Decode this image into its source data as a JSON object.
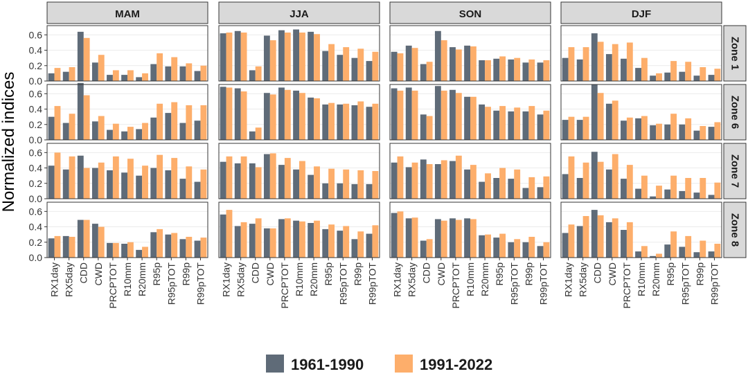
{
  "chart_data": {
    "type": "bar",
    "ylabel": "Normalized indices",
    "ylim": [
      0,
      0.72
    ],
    "yticks": [
      0.0,
      0.2,
      0.4,
      0.6
    ],
    "ytick_labels": [
      "0.0",
      "0.2",
      "0.4",
      "0.6"
    ],
    "seasons": [
      "MAM",
      "JJA",
      "SON",
      "DJF"
    ],
    "zones": [
      "Zone 1",
      "Zone 6",
      "Zone 7",
      "Zone 8"
    ],
    "categories": [
      "RX1day",
      "RX5day",
      "CDD",
      "CWD",
      "PRCPTOT",
      "R10mm",
      "R20mm",
      "R95p",
      "R95pTOT",
      "R99p",
      "R99pTOT"
    ],
    "series": [
      {
        "name": "1961-1990",
        "color": "#5f6b78"
      },
      {
        "name": "1991-2022",
        "color": "#fdae6b"
      }
    ],
    "legend": {
      "position": "bottom",
      "items": [
        "1961-1990",
        "1991-2022"
      ]
    },
    "panels": [
      {
        "zone": "Zone 1",
        "season": "MAM",
        "v1961": [
          0.1,
          0.12,
          0.64,
          0.24,
          0.08,
          0.08,
          0.05,
          0.22,
          0.19,
          0.19,
          0.13
        ],
        "v1991": [
          0.17,
          0.18,
          0.56,
          0.34,
          0.14,
          0.14,
          0.1,
          0.36,
          0.31,
          0.23,
          0.2
        ]
      },
      {
        "zone": "Zone 1",
        "season": "JJA",
        "v1961": [
          0.62,
          0.65,
          0.14,
          0.59,
          0.66,
          0.67,
          0.64,
          0.39,
          0.34,
          0.3,
          0.26
        ],
        "v1991": [
          0.63,
          0.63,
          0.19,
          0.53,
          0.63,
          0.63,
          0.61,
          0.48,
          0.44,
          0.42,
          0.38
        ]
      },
      {
        "zone": "Zone 1",
        "season": "SON",
        "v1961": [
          0.38,
          0.46,
          0.22,
          0.65,
          0.44,
          0.46,
          0.27,
          0.29,
          0.28,
          0.24,
          0.24
        ],
        "v1991": [
          0.36,
          0.43,
          0.25,
          0.53,
          0.41,
          0.45,
          0.27,
          0.32,
          0.3,
          0.28,
          0.27
        ]
      },
      {
        "zone": "Zone 1",
        "season": "DJF",
        "v1961": [
          0.3,
          0.28,
          0.62,
          0.35,
          0.29,
          0.17,
          0.07,
          0.11,
          0.12,
          0.07,
          0.08
        ],
        "v1991": [
          0.44,
          0.44,
          0.51,
          0.48,
          0.5,
          0.3,
          0.1,
          0.26,
          0.25,
          0.18,
          0.16
        ]
      },
      {
        "zone": "Zone 6",
        "season": "MAM",
        "v1961": [
          0.3,
          0.22,
          0.74,
          0.24,
          0.13,
          0.11,
          0.14,
          0.29,
          0.35,
          0.22,
          0.25
        ],
        "v1991": [
          0.44,
          0.34,
          0.58,
          0.31,
          0.21,
          0.17,
          0.22,
          0.47,
          0.49,
          0.45,
          0.45
        ]
      },
      {
        "zone": "Zone 6",
        "season": "JJA",
        "v1961": [
          0.69,
          0.67,
          0.11,
          0.61,
          0.68,
          0.64,
          0.55,
          0.46,
          0.46,
          0.45,
          0.43
        ],
        "v1991": [
          0.68,
          0.63,
          0.16,
          0.59,
          0.65,
          0.61,
          0.54,
          0.48,
          0.47,
          0.5,
          0.47
        ]
      },
      {
        "zone": "Zone 6",
        "season": "SON",
        "v1961": [
          0.67,
          0.68,
          0.33,
          0.7,
          0.65,
          0.56,
          0.46,
          0.38,
          0.37,
          0.37,
          0.33
        ],
        "v1991": [
          0.64,
          0.64,
          0.31,
          0.64,
          0.61,
          0.56,
          0.43,
          0.44,
          0.42,
          0.44,
          0.38
        ]
      },
      {
        "zone": "Zone 6",
        "season": "DJF",
        "v1961": [
          0.26,
          0.26,
          0.72,
          0.47,
          0.25,
          0.28,
          0.19,
          0.2,
          0.2,
          0.12,
          0.17
        ],
        "v1991": [
          0.3,
          0.3,
          0.61,
          0.51,
          0.29,
          0.31,
          0.21,
          0.34,
          0.28,
          0.18,
          0.23
        ]
      },
      {
        "zone": "Zone 7",
        "season": "MAM",
        "v1961": [
          0.43,
          0.38,
          0.56,
          0.4,
          0.37,
          0.34,
          0.3,
          0.4,
          0.37,
          0.26,
          0.22
        ],
        "v1991": [
          0.6,
          0.55,
          0.4,
          0.47,
          0.55,
          0.52,
          0.43,
          0.57,
          0.53,
          0.42,
          0.38
        ]
      },
      {
        "zone": "Zone 7",
        "season": "JJA",
        "v1961": [
          0.48,
          0.46,
          0.46,
          0.58,
          0.44,
          0.38,
          0.31,
          0.2,
          0.2,
          0.19,
          0.19
        ],
        "v1991": [
          0.55,
          0.55,
          0.41,
          0.59,
          0.53,
          0.49,
          0.42,
          0.39,
          0.38,
          0.37,
          0.36
        ]
      },
      {
        "zone": "Zone 7",
        "season": "SON",
        "v1961": [
          0.47,
          0.41,
          0.51,
          0.45,
          0.49,
          0.38,
          0.22,
          0.27,
          0.26,
          0.14,
          0.15
        ],
        "v1991": [
          0.55,
          0.47,
          0.45,
          0.5,
          0.56,
          0.44,
          0.33,
          0.4,
          0.38,
          0.28,
          0.29
        ]
      },
      {
        "zone": "Zone 7",
        "season": "DJF",
        "v1961": [
          0.32,
          0.27,
          0.61,
          0.38,
          0.26,
          0.13,
          0.03,
          0.12,
          0.1,
          0.08,
          0.05
        ],
        "v1991": [
          0.55,
          0.47,
          0.48,
          0.58,
          0.44,
          0.3,
          0.17,
          0.3,
          0.27,
          0.27,
          0.21
        ]
      },
      {
        "zone": "Zone 8",
        "season": "MAM",
        "v1961": [
          0.25,
          0.28,
          0.49,
          0.44,
          0.19,
          0.18,
          0.1,
          0.33,
          0.3,
          0.24,
          0.22
        ],
        "v1991": [
          0.28,
          0.27,
          0.49,
          0.4,
          0.19,
          0.2,
          0.14,
          0.37,
          0.32,
          0.27,
          0.26
        ]
      },
      {
        "zone": "Zone 8",
        "season": "JJA",
        "v1961": [
          0.56,
          0.41,
          0.44,
          0.38,
          0.5,
          0.48,
          0.45,
          0.37,
          0.35,
          0.24,
          0.31
        ],
        "v1991": [
          0.62,
          0.46,
          0.51,
          0.38,
          0.51,
          0.47,
          0.48,
          0.43,
          0.41,
          0.34,
          0.42
        ]
      },
      {
        "zone": "Zone 8",
        "season": "SON",
        "v1961": [
          0.58,
          0.51,
          0.22,
          0.5,
          0.51,
          0.51,
          0.29,
          0.26,
          0.2,
          0.2,
          0.15
        ],
        "v1991": [
          0.6,
          0.52,
          0.24,
          0.48,
          0.49,
          0.5,
          0.3,
          0.31,
          0.24,
          0.27,
          0.2
        ]
      },
      {
        "zone": "Zone 8",
        "season": "DJF",
        "v1961": [
          0.32,
          0.41,
          0.62,
          0.46,
          0.36,
          0.08,
          0.02,
          0.17,
          0.14,
          0.07,
          0.08
        ],
        "v1991": [
          0.43,
          0.54,
          0.55,
          0.51,
          0.46,
          0.15,
          0.05,
          0.34,
          0.28,
          0.22,
          0.18
        ]
      }
    ]
  }
}
